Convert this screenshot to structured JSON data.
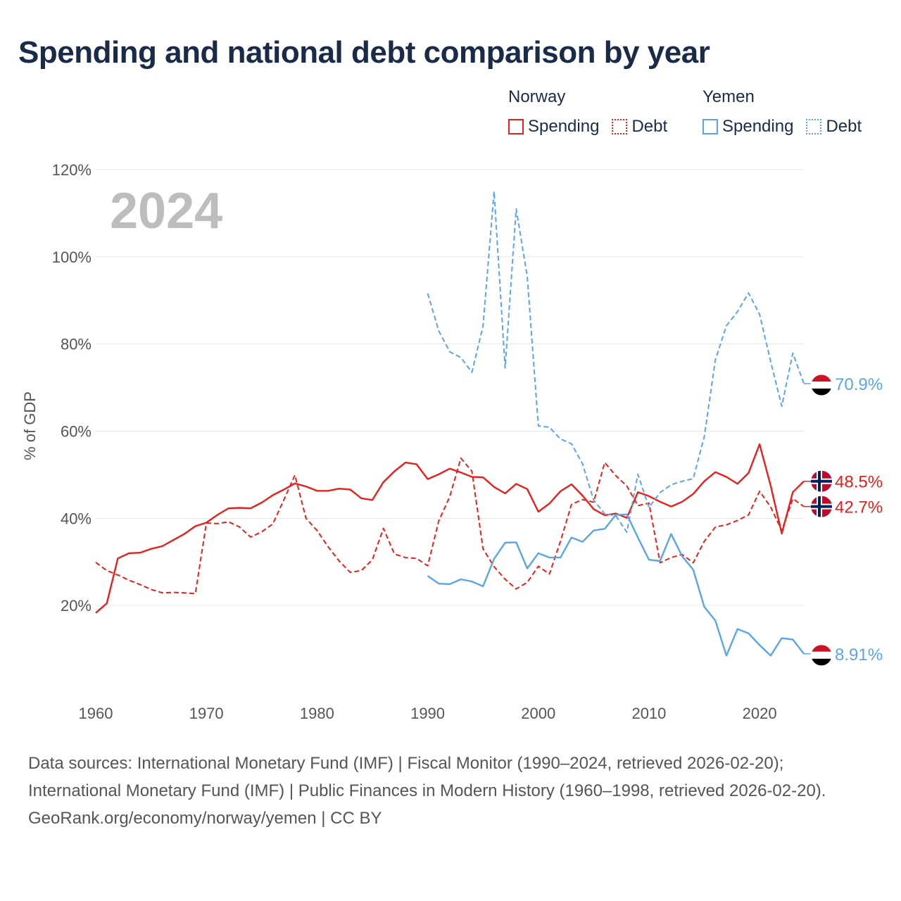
{
  "title": "Spending and national debt comparison by year",
  "legend": {
    "norway": {
      "name": "Norway",
      "spending": "Spending",
      "debt": "Debt"
    },
    "yemen": {
      "name": "Yemen",
      "spending": "Spending",
      "debt": "Debt"
    }
  },
  "colors": {
    "norway": "#e8201c",
    "yemen": "#5aa5e6",
    "grid": "#e6e6e6",
    "text": "#555555",
    "title": "#1a2b4a"
  },
  "footer": {
    "sources": "Data sources: International Monetary Fund (IMF) | Fiscal Monitor (1990–2024, retrieved 2026-02-20); International Monetary Fund (IMF) | Public Finances in Modern History (1960–1998, retrieved 2026-02-20).",
    "credit": "GeoRank.org/economy/norway/yemen | CC BY"
  },
  "chart_data": {
    "type": "line",
    "title": "Spending and national debt comparison by year",
    "year_label": "2024",
    "ylabel": "% of GDP",
    "xlabel": "",
    "xlim": [
      1960,
      2024
    ],
    "ylim": [
      0,
      120
    ],
    "x_ticks": [
      1960,
      1970,
      1980,
      1990,
      2000,
      2010,
      2020
    ],
    "y_ticks": [
      20,
      40,
      60,
      80,
      100,
      120
    ],
    "y_tick_labels": [
      "20%",
      "40%",
      "60%",
      "80%",
      "100%",
      "120%"
    ],
    "grid": true,
    "series": [
      {
        "name": "Norway Spending",
        "country": "Norway",
        "kind": "Spending",
        "color": "#e8201c",
        "dashed": false,
        "end_label": "48.5%",
        "end_value": 48.5,
        "points": [
          [
            1960,
            18.3
          ],
          [
            1961,
            20.5
          ],
          [
            1962,
            30.8
          ],
          [
            1963,
            32.0
          ],
          [
            1964,
            32.1
          ],
          [
            1965,
            33.0
          ],
          [
            1966,
            33.6
          ],
          [
            1967,
            35.0
          ],
          [
            1968,
            36.4
          ],
          [
            1969,
            38.2
          ],
          [
            1970,
            39.0
          ],
          [
            1971,
            40.8
          ],
          [
            1972,
            42.3
          ],
          [
            1973,
            42.4
          ],
          [
            1974,
            42.3
          ],
          [
            1975,
            43.6
          ],
          [
            1976,
            45.3
          ],
          [
            1977,
            46.6
          ],
          [
            1978,
            48.0
          ],
          [
            1979,
            47.3
          ],
          [
            1980,
            46.3
          ],
          [
            1981,
            46.3
          ],
          [
            1982,
            46.8
          ],
          [
            1983,
            46.6
          ],
          [
            1984,
            44.6
          ],
          [
            1985,
            44.2
          ],
          [
            1986,
            48.3
          ],
          [
            1987,
            50.8
          ],
          [
            1988,
            52.8
          ],
          [
            1989,
            52.4
          ],
          [
            1990,
            49.0
          ],
          [
            1991,
            50.1
          ],
          [
            1992,
            51.4
          ],
          [
            1993,
            50.5
          ],
          [
            1994,
            49.5
          ],
          [
            1995,
            49.4
          ],
          [
            1996,
            47.2
          ],
          [
            1997,
            45.7
          ],
          [
            1998,
            47.9
          ],
          [
            1999,
            46.7
          ],
          [
            2000,
            41.5
          ],
          [
            2001,
            43.4
          ],
          [
            2002,
            46.2
          ],
          [
            2003,
            47.8
          ],
          [
            2004,
            45.2
          ],
          [
            2005,
            42.1
          ],
          [
            2006,
            40.7
          ],
          [
            2007,
            41.1
          ],
          [
            2008,
            40.1
          ],
          [
            2009,
            46.0
          ],
          [
            2010,
            45.1
          ],
          [
            2011,
            43.8
          ],
          [
            2012,
            42.7
          ],
          [
            2013,
            43.8
          ],
          [
            2014,
            45.6
          ],
          [
            2015,
            48.5
          ],
          [
            2016,
            50.6
          ],
          [
            2017,
            49.5
          ],
          [
            2018,
            47.9
          ],
          [
            2019,
            50.4
          ],
          [
            2020,
            57.0
          ],
          [
            2021,
            47.5
          ],
          [
            2022,
            36.5
          ],
          [
            2023,
            46.0
          ],
          [
            2024,
            48.5
          ]
        ]
      },
      {
        "name": "Norway Debt",
        "country": "Norway",
        "kind": "Debt",
        "color": "#e8201c",
        "dashed": true,
        "end_label": "42.7%",
        "end_value": 42.7,
        "points": [
          [
            1960,
            29.9
          ],
          [
            1961,
            28.0
          ],
          [
            1962,
            27.0
          ],
          [
            1963,
            25.8
          ],
          [
            1964,
            24.8
          ],
          [
            1965,
            23.7
          ],
          [
            1966,
            22.9
          ],
          [
            1967,
            23.0
          ],
          [
            1968,
            22.9
          ],
          [
            1969,
            22.7
          ],
          [
            1970,
            38.9
          ],
          [
            1971,
            38.8
          ],
          [
            1972,
            39.2
          ],
          [
            1973,
            38.0
          ],
          [
            1974,
            35.7
          ],
          [
            1975,
            36.9
          ],
          [
            1976,
            38.7
          ],
          [
            1977,
            44.2
          ],
          [
            1978,
            49.9
          ],
          [
            1979,
            40.0
          ],
          [
            1980,
            37.2
          ],
          [
            1981,
            33.5
          ],
          [
            1982,
            30.2
          ],
          [
            1983,
            27.6
          ],
          [
            1984,
            28.0
          ],
          [
            1985,
            30.5
          ],
          [
            1986,
            37.7
          ],
          [
            1987,
            31.8
          ],
          [
            1988,
            31.0
          ],
          [
            1989,
            30.8
          ],
          [
            1990,
            29.1
          ],
          [
            1991,
            39.4
          ],
          [
            1992,
            45.0
          ],
          [
            1993,
            53.8
          ],
          [
            1994,
            50.8
          ],
          [
            1995,
            33.0
          ],
          [
            1996,
            28.9
          ],
          [
            1997,
            26.0
          ],
          [
            1998,
            23.8
          ],
          [
            1999,
            25.3
          ],
          [
            2000,
            29.0
          ],
          [
            2001,
            27.2
          ],
          [
            2002,
            34.7
          ],
          [
            2003,
            43.2
          ],
          [
            2004,
            44.3
          ],
          [
            2005,
            43.7
          ],
          [
            2006,
            52.8
          ],
          [
            2007,
            49.8
          ],
          [
            2008,
            47.4
          ],
          [
            2009,
            42.9
          ],
          [
            2010,
            43.5
          ],
          [
            2011,
            29.8
          ],
          [
            2012,
            31.0
          ],
          [
            2013,
            31.7
          ],
          [
            2014,
            29.8
          ],
          [
            2015,
            34.7
          ],
          [
            2016,
            38.0
          ],
          [
            2017,
            38.5
          ],
          [
            2018,
            39.5
          ],
          [
            2019,
            40.8
          ],
          [
            2020,
            46.2
          ],
          [
            2021,
            42.6
          ],
          [
            2022,
            37.2
          ],
          [
            2023,
            44.5
          ],
          [
            2024,
            42.7
          ]
        ]
      },
      {
        "name": "Yemen Spending",
        "country": "Yemen",
        "kind": "Spending",
        "color": "#5aa5e6",
        "dashed": false,
        "end_label": "8.91%",
        "end_value": 8.91,
        "points": [
          [
            1990,
            26.8
          ],
          [
            1991,
            25.0
          ],
          [
            1992,
            24.9
          ],
          [
            1993,
            26.0
          ],
          [
            1994,
            25.5
          ],
          [
            1995,
            24.4
          ],
          [
            1996,
            30.7
          ],
          [
            1997,
            34.4
          ],
          [
            1998,
            34.5
          ],
          [
            1999,
            28.5
          ],
          [
            2000,
            32.0
          ],
          [
            2001,
            31.0
          ],
          [
            2002,
            31.0
          ],
          [
            2003,
            35.6
          ],
          [
            2004,
            34.6
          ],
          [
            2005,
            37.2
          ],
          [
            2006,
            37.6
          ],
          [
            2007,
            40.8
          ],
          [
            2008,
            40.9
          ],
          [
            2009,
            35.6
          ],
          [
            2010,
            30.5
          ],
          [
            2011,
            30.2
          ],
          [
            2012,
            36.4
          ],
          [
            2013,
            31.3
          ],
          [
            2014,
            28.2
          ],
          [
            2015,
            19.7
          ],
          [
            2016,
            16.5
          ],
          [
            2017,
            8.5
          ],
          [
            2018,
            14.6
          ],
          [
            2019,
            13.6
          ],
          [
            2020,
            10.9
          ],
          [
            2021,
            8.5
          ],
          [
            2022,
            12.5
          ],
          [
            2023,
            12.2
          ],
          [
            2024,
            8.91
          ]
        ]
      },
      {
        "name": "Yemen Debt",
        "country": "Yemen",
        "kind": "Debt",
        "color": "#5aa5e6",
        "dashed": true,
        "end_label": "70.9%",
        "end_value": 70.9,
        "points": [
          [
            1990,
            91.6
          ],
          [
            1991,
            83.0
          ],
          [
            1992,
            78.2
          ],
          [
            1993,
            76.9
          ],
          [
            1994,
            73.5
          ],
          [
            1995,
            84.1
          ],
          [
            1996,
            115.0
          ],
          [
            1997,
            74.5
          ],
          [
            1998,
            111.0
          ],
          [
            1999,
            95.5
          ],
          [
            2000,
            61.2
          ],
          [
            2001,
            60.9
          ],
          [
            2002,
            58.2
          ],
          [
            2003,
            57.1
          ],
          [
            2004,
            52.5
          ],
          [
            2005,
            44.2
          ],
          [
            2006,
            41.0
          ],
          [
            2007,
            40.6
          ],
          [
            2008,
            36.8
          ],
          [
            2009,
            50.1
          ],
          [
            2010,
            42.5
          ],
          [
            2011,
            45.9
          ],
          [
            2012,
            47.7
          ],
          [
            2013,
            48.5
          ],
          [
            2014,
            49.1
          ],
          [
            2015,
            58.7
          ],
          [
            2016,
            76.4
          ],
          [
            2017,
            84.2
          ],
          [
            2018,
            87.4
          ],
          [
            2019,
            91.7
          ],
          [
            2020,
            86.8
          ],
          [
            2021,
            76.0
          ],
          [
            2022,
            65.7
          ],
          [
            2023,
            77.9
          ],
          [
            2024,
            70.9
          ]
        ]
      }
    ]
  }
}
